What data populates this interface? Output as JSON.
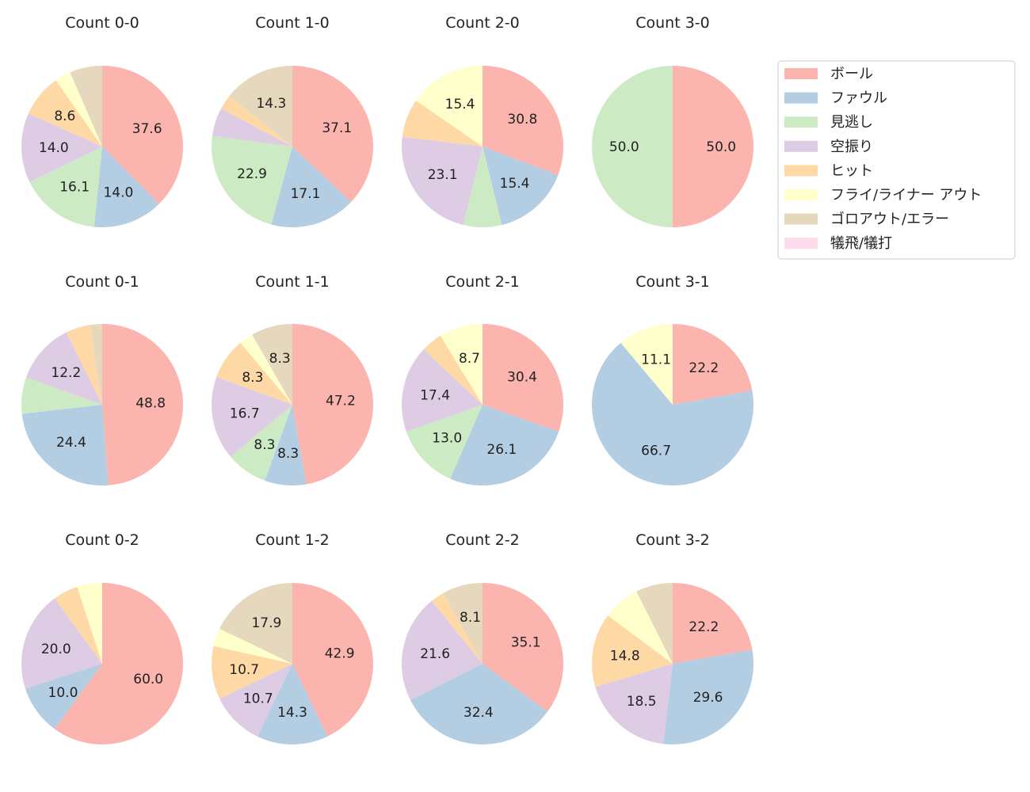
{
  "chart_data": {
    "type": "pie",
    "legend": {
      "placement": "top-right",
      "entries": [
        "ボール",
        "ファウル",
        "見逃し",
        "空振り",
        "ヒット",
        "フライ/ライナー アウト",
        "ゴロアウト/エラー",
        "犠飛/犠打"
      ]
    },
    "colors": [
      "#fbb4ae",
      "#b3cde3",
      "#ccebc5",
      "#decbe4",
      "#fed9a6",
      "#ffffcc",
      "#e5d8bd",
      "#fddaec"
    ],
    "start_angle_deg": 90,
    "direction": "clockwise",
    "label_min_percent": 8,
    "charts": [
      {
        "title": "Count 0-0",
        "values": [
          37.6,
          14.0,
          16.1,
          14.0,
          8.6,
          3.2,
          6.5,
          0
        ]
      },
      {
        "title": "Count 1-0",
        "values": [
          37.1,
          17.1,
          22.9,
          5.7,
          2.9,
          0,
          14.3,
          0
        ]
      },
      {
        "title": "Count 2-0",
        "values": [
          30.8,
          15.4,
          7.7,
          23.1,
          7.7,
          15.4,
          0,
          0
        ]
      },
      {
        "title": "Count 3-0",
        "values": [
          50.0,
          0,
          50.0,
          0,
          0,
          0,
          0,
          0
        ]
      },
      {
        "title": "Count 0-1",
        "values": [
          48.8,
          24.4,
          7.3,
          12.2,
          4.9,
          0,
          2.4,
          0
        ]
      },
      {
        "title": "Count 1-1",
        "values": [
          47.2,
          8.3,
          8.3,
          16.7,
          8.3,
          2.8,
          8.3,
          0
        ]
      },
      {
        "title": "Count 2-1",
        "values": [
          30.4,
          26.1,
          13.0,
          17.4,
          4.3,
          8.7,
          0,
          0
        ]
      },
      {
        "title": "Count 3-1",
        "values": [
          22.2,
          66.7,
          0,
          0,
          0,
          11.1,
          0,
          0
        ]
      },
      {
        "title": "Count 0-2",
        "values": [
          60.0,
          10.0,
          0,
          20.0,
          5.0,
          5.0,
          0,
          0
        ]
      },
      {
        "title": "Count 1-2",
        "values": [
          42.9,
          14.3,
          0,
          10.7,
          10.7,
          3.6,
          17.9,
          0
        ]
      },
      {
        "title": "Count 2-2",
        "values": [
          35.1,
          32.4,
          0,
          21.6,
          2.7,
          0,
          8.1,
          0
        ]
      },
      {
        "title": "Count 3-2",
        "values": [
          22.2,
          29.6,
          0,
          18.5,
          14.8,
          7.4,
          7.4,
          0
        ]
      }
    ]
  }
}
